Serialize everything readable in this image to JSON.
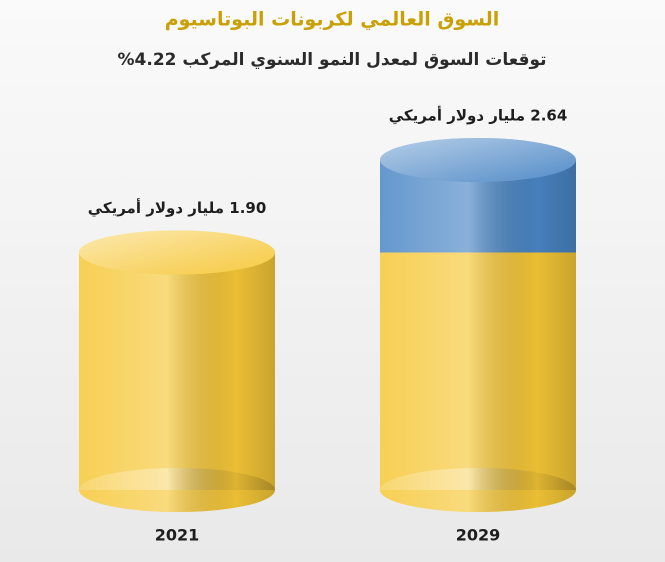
{
  "chart_data": {
    "type": "bar",
    "title": "السوق العالمي لكربونات البوتاسيوم",
    "subtitle": "توقعات السوق لمعدل النمو السنوي المركب 4.22%",
    "categories": [
      "2021",
      "2029"
    ],
    "values": [
      1.9,
      2.64
    ],
    "value_labels": [
      "1.90 مليار دولار أمريكي",
      "2.64 مليار دولار أمريكي"
    ],
    "color": "#f6c737",
    "growth_color": "#4a86c5"
  }
}
